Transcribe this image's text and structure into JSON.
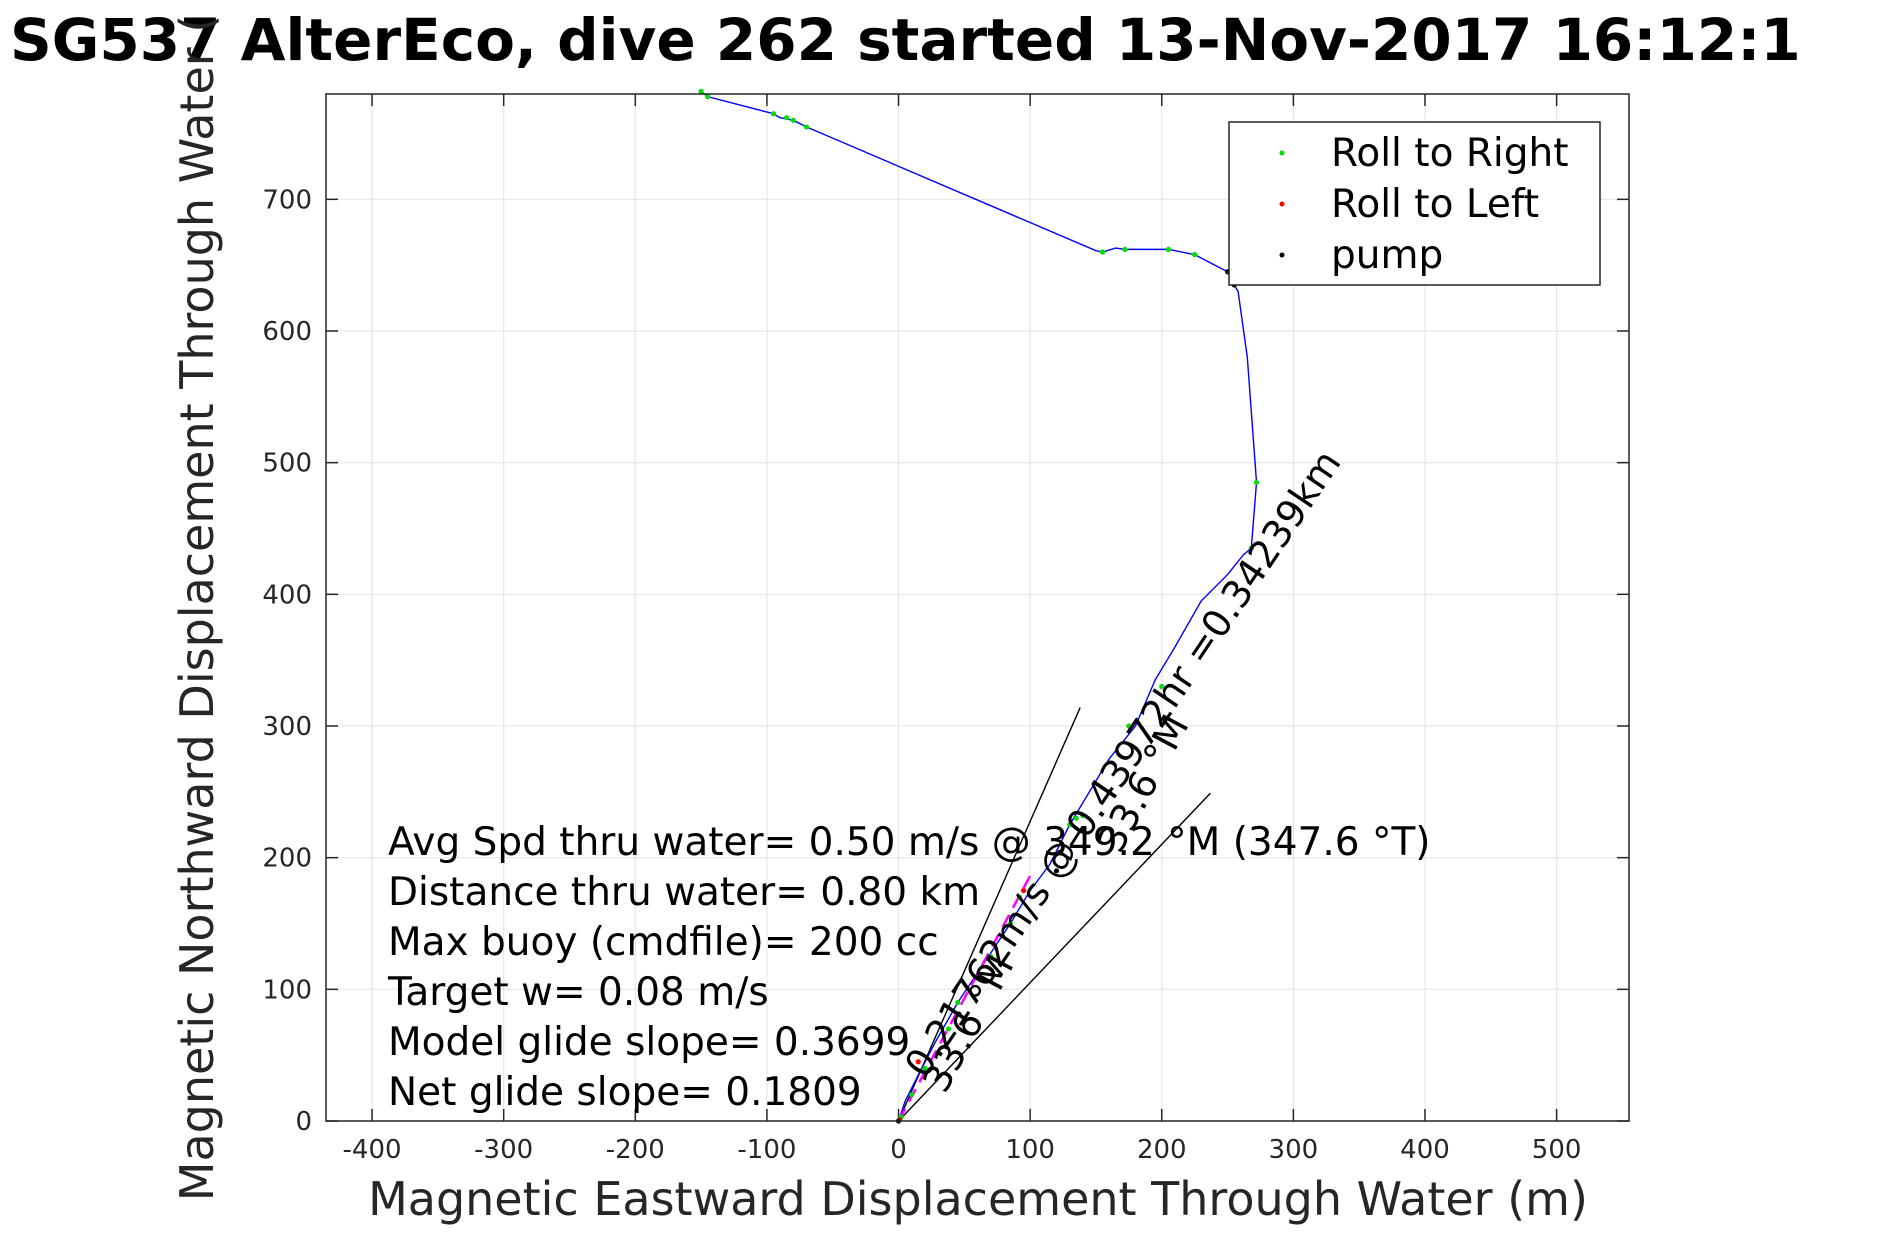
{
  "chart_data": {
    "type": "line",
    "title": "SG537 AlterEco, dive 262 started 13-Nov-2017 16:12:1",
    "xlabel": "Magnetic Eastward Displacement Through Water (m)",
    "ylabel": "Magnetic Northward Displacement Through Water (",
    "xlim": [
      -435,
      555
    ],
    "ylim": [
      0,
      780
    ],
    "xticks": [
      -400,
      -300,
      -200,
      -100,
      0,
      100,
      200,
      300,
      400,
      500
    ],
    "yticks": [
      0,
      100,
      200,
      300,
      400,
      500,
      600,
      700
    ],
    "xtick_labels": [
      "-400",
      "-300",
      "-200",
      "-100",
      "0",
      "100",
      "200",
      "300",
      "400",
      "500"
    ],
    "ytick_labels": [
      "0",
      "100",
      "200",
      "300",
      "400",
      "500",
      "600",
      "700"
    ],
    "grid": true,
    "legend": {
      "position": "top-right",
      "entries": [
        {
          "label": "Roll to Right",
          "color": "#00dd00"
        },
        {
          "label": "Roll to Left",
          "color": "#ff0000"
        },
        {
          "label": "pump",
          "color": "#000000"
        }
      ]
    },
    "colors": {
      "track": "#0000ff",
      "roll_right": "#00dd00",
      "roll_left": "#ff0000",
      "pump": "#000000",
      "current_arrow": "#ff00ff",
      "axes": "#262626",
      "grid": "#e6e6e6"
    },
    "series": [
      {
        "style": "track",
        "x": [
          0,
          5,
          15,
          28,
          45,
          65,
          85,
          100,
          115,
          130,
          145,
          160,
          180,
          195,
          210,
          230,
          250,
          262,
          268,
          272,
          265,
          258,
          255,
          250,
          225,
          205,
          172,
          165,
          155,
          150,
          -70,
          -80,
          -90,
          -95,
          -145,
          -150
        ],
        "y": [
          0,
          15,
          35,
          60,
          90,
          120,
          150,
          175,
          195,
          225,
          250,
          275,
          300,
          335,
          360,
          395,
          415,
          430,
          435,
          485,
          580,
          630,
          635,
          645,
          658,
          662,
          662,
          663,
          660,
          661,
          755,
          760,
          762,
          765,
          778,
          782
        ]
      },
      {
        "style": "points",
        "name": "Roll to Right",
        "x": [
          2,
          10,
          20,
          38,
          45,
          70,
          85,
          92,
          130,
          135,
          140,
          175,
          200,
          268,
          272,
          225,
          205,
          172,
          155,
          -70,
          -80,
          -85,
          -95,
          -145,
          -150
        ],
        "y": [
          3,
          20,
          40,
          70,
          90,
          125,
          150,
          170,
          225,
          230,
          232,
          300,
          330,
          435,
          485,
          658,
          662,
          662,
          660,
          755,
          760,
          762,
          765,
          778,
          782
        ]
      },
      {
        "style": "points",
        "name": "Roll to Left",
        "x": [
          1,
          15,
          95
        ],
        "y": [
          1,
          45,
          175
        ]
      },
      {
        "style": "points",
        "name": "pump",
        "x": [
          0,
          120,
          255,
          250
        ],
        "y": [
          0,
          190,
          635,
          645
        ]
      }
    ],
    "guide_lines": [
      {
        "from": [
          0,
          0
        ],
        "to": [
          138,
          314
        ]
      },
      {
        "from": [
          0,
          0
        ],
        "to": [
          237,
          249
        ]
      }
    ],
    "current_arrow": {
      "from": [
        0,
        0
      ],
      "to": [
        102,
        190
      ]
    },
    "annotations": [
      "Avg Spd thru water=  0.50 m/s @ 349.2 °M (347.6 °T)",
      "Distance thru water=  0.80 km",
      "Max buoy (cmdfile)= 200 cc",
      "Target w= 0.08 m/s",
      "Model glide slope= 0.3699",
      "Net glide slope= 0.1809"
    ],
    "rotated_labels": [
      "33.6 °M",
      "33.6 °M",
      "0.21762m/s @ 0.43972hr =0.34239km"
    ]
  }
}
